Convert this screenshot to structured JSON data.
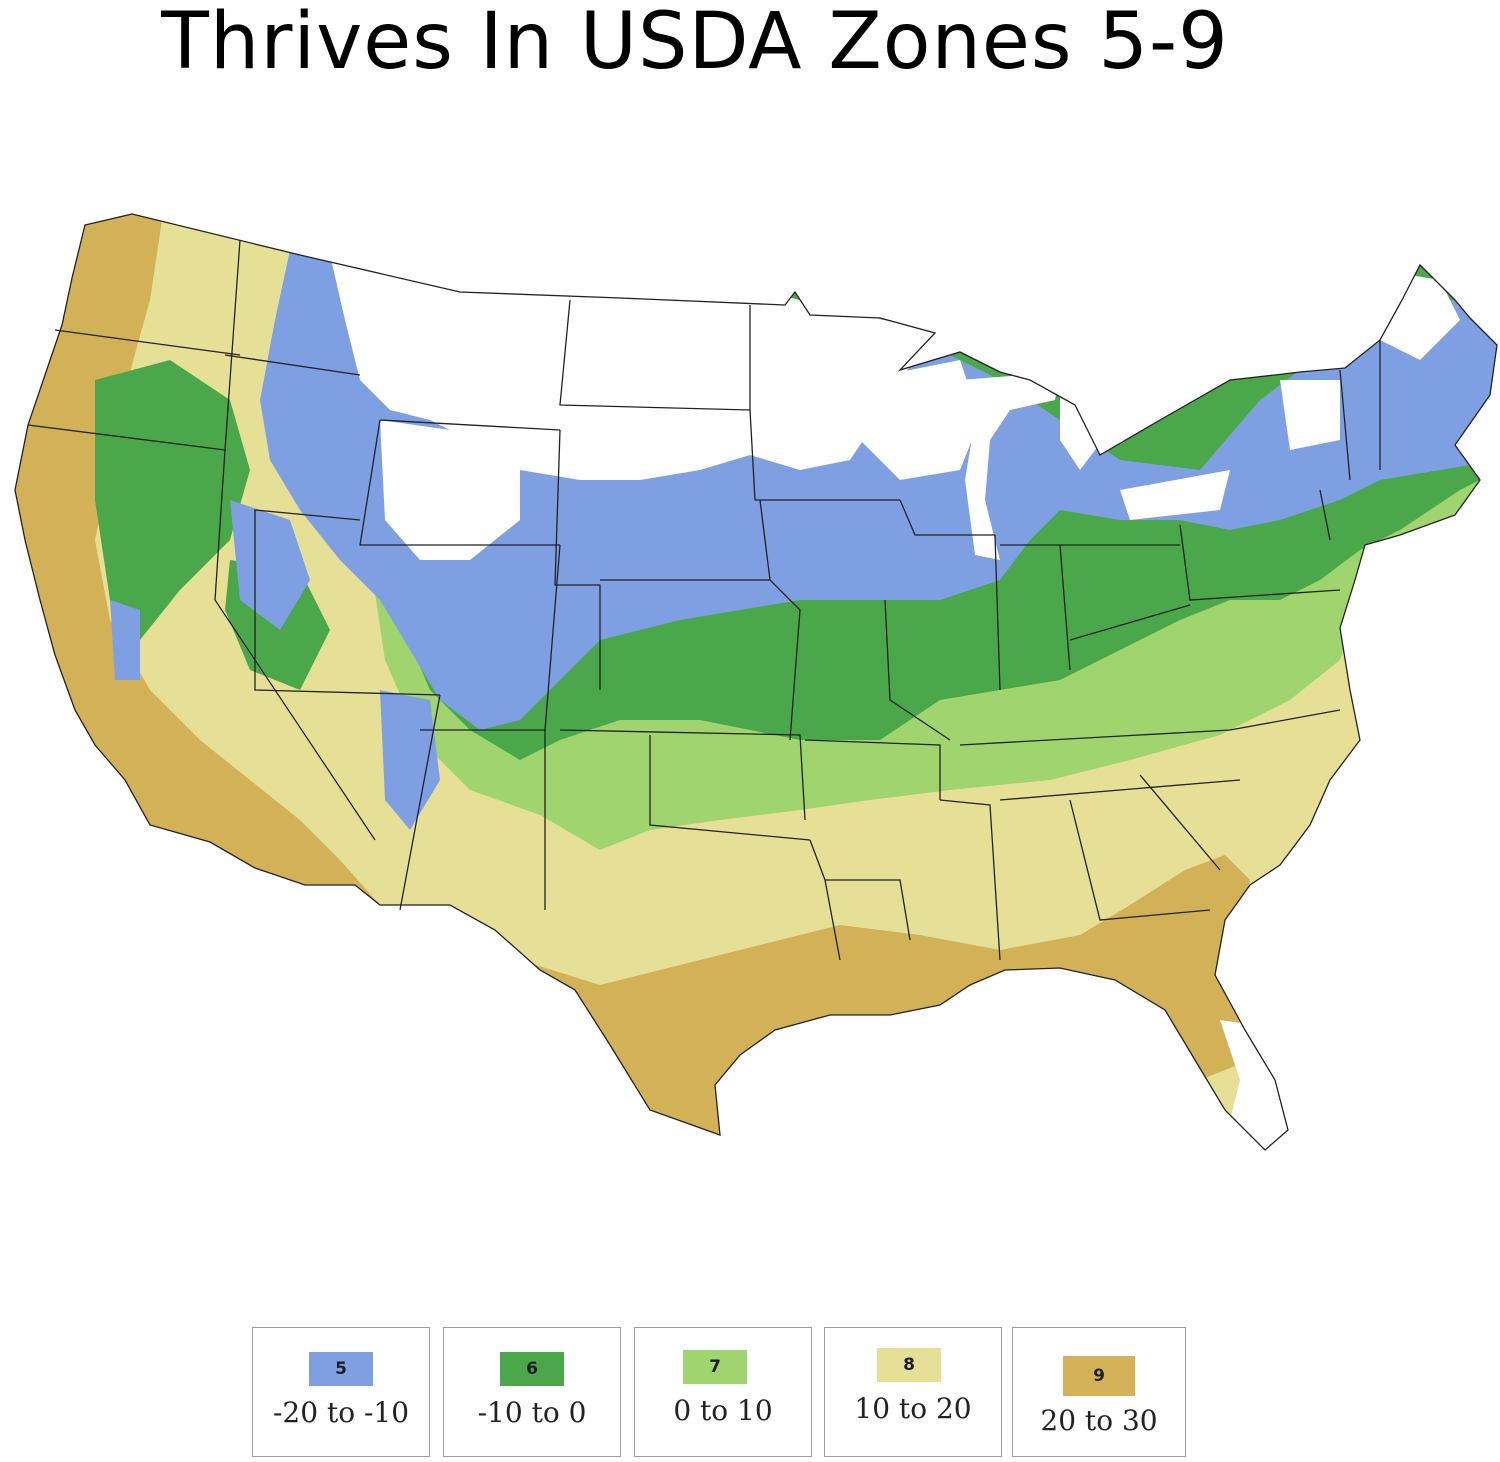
{
  "title": "Thrives In USDA Zones 5-9",
  "colors": {
    "zone5": "#7f9fe3",
    "zone6": "#4aa84a",
    "zone7": "#9fd46e",
    "zone8": "#e6e096",
    "zone9": "#d3b257",
    "outline": "#222222"
  },
  "legend": [
    {
      "zone": "5",
      "range": "-20 to -10"
    },
    {
      "zone": "6",
      "range": "-10 to 0"
    },
    {
      "zone": "7",
      "range": "0 to 10"
    },
    {
      "zone": "8",
      "range": "10 to 20"
    },
    {
      "zone": "9",
      "range": "20 to 30"
    }
  ]
}
